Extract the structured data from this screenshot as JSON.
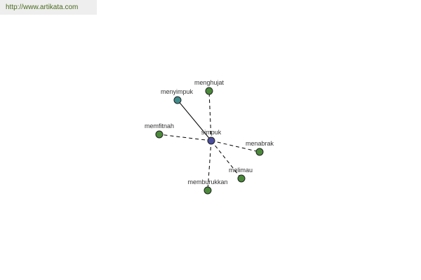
{
  "watermark": {
    "url_text": "http://www.artikata.com"
  },
  "graph": {
    "center": {
      "id": "simpuk",
      "label": "simpuk",
      "color": "#4b4e9c"
    },
    "nodes": [
      {
        "id": "menyimpuk",
        "label": "menyimpuk",
        "color": "#3f8c8c",
        "edge": "solid"
      },
      {
        "id": "menghujat",
        "label": "menghujat",
        "color": "#4a8a3a",
        "edge": "dashed"
      },
      {
        "id": "memfitnah",
        "label": "memfitnah",
        "color": "#4a8a3a",
        "edge": "dashed"
      },
      {
        "id": "menabrak",
        "label": "menabrak",
        "color": "#4a8a3a",
        "edge": "dashed"
      },
      {
        "id": "melimau",
        "label": "melimau",
        "color": "#4a8a3a",
        "edge": "dashed"
      },
      {
        "id": "memburukkan",
        "label": "memburukkan",
        "color": "#4a8a3a",
        "edge": "dashed"
      }
    ]
  }
}
